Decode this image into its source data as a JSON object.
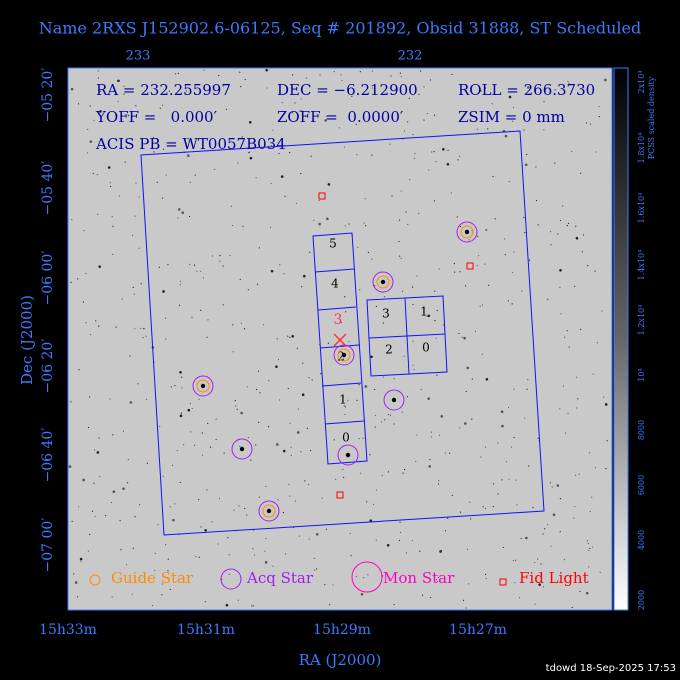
{
  "title": "Name 2RXS J152902.6-06125, Seq # 201892, Obsid 31888, ST Scheduled",
  "axes": {
    "top_ticks": [
      "233",
      "232"
    ],
    "left_ticks": [
      "−05 20′",
      "−05 40′",
      "−06 00′",
      "−06 20′",
      "−06 40′",
      "−07 00′"
    ],
    "bottom_ticks": [
      "15h33m",
      "15h31m",
      "15h29m",
      "15h27m"
    ],
    "x_label": "RA (J2000)",
    "y_label": "Dec (J2000)"
  },
  "info": {
    "ra": "RA = 232.255997",
    "dec": "DEC = −6.212900",
    "roll": "ROLL = 266.3730",
    "yoff": "YOFF =   0.000′",
    "zoff": "ZOFF =  0.0000′",
    "zsim": "ZSIM = 0 mm",
    "acis": "ACIS PB = WT0057B034"
  },
  "chips": [
    "5",
    "4",
    "3",
    "2",
    "1",
    "0",
    "3",
    "1",
    "2",
    "0"
  ],
  "legend": [
    "Guide Star",
    "Acq Star",
    "Mon Star",
    "Fid Light"
  ],
  "colorbar": {
    "title": "PCSS scaled density",
    "ticks": [
      "2x10⁴",
      "1.8x10⁴",
      "1.6x10⁴",
      "1.4x10⁴",
      "1.2x10⁴",
      "10⁴",
      "8000",
      "6000",
      "4000",
      "2000"
    ]
  },
  "footer": "tdowd 18-Sep-2025 17:53"
}
